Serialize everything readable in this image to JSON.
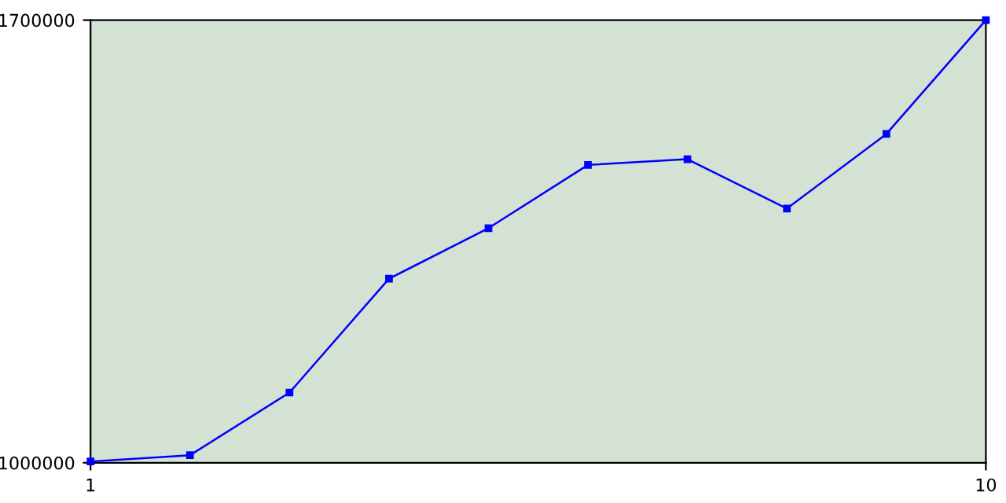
{
  "chart_data": {
    "type": "line",
    "x": [
      1,
      2,
      3,
      4,
      5,
      6,
      7,
      8,
      9,
      10
    ],
    "series": [
      {
        "color": "#0000ff",
        "values": [
          1002000,
          1012000,
          1111000,
          1291000,
          1371000,
          1471000,
          1480000,
          1402000,
          1520000,
          1700000
        ]
      }
    ],
    "xlim": [
      1,
      10
    ],
    "xticks": [
      1,
      10
    ],
    "ylim": [
      1000000,
      1700000
    ],
    "yticks": [
      1000000,
      1700000
    ],
    "marker": "square",
    "line_style": "solid",
    "grid": false,
    "legend": false
  }
}
